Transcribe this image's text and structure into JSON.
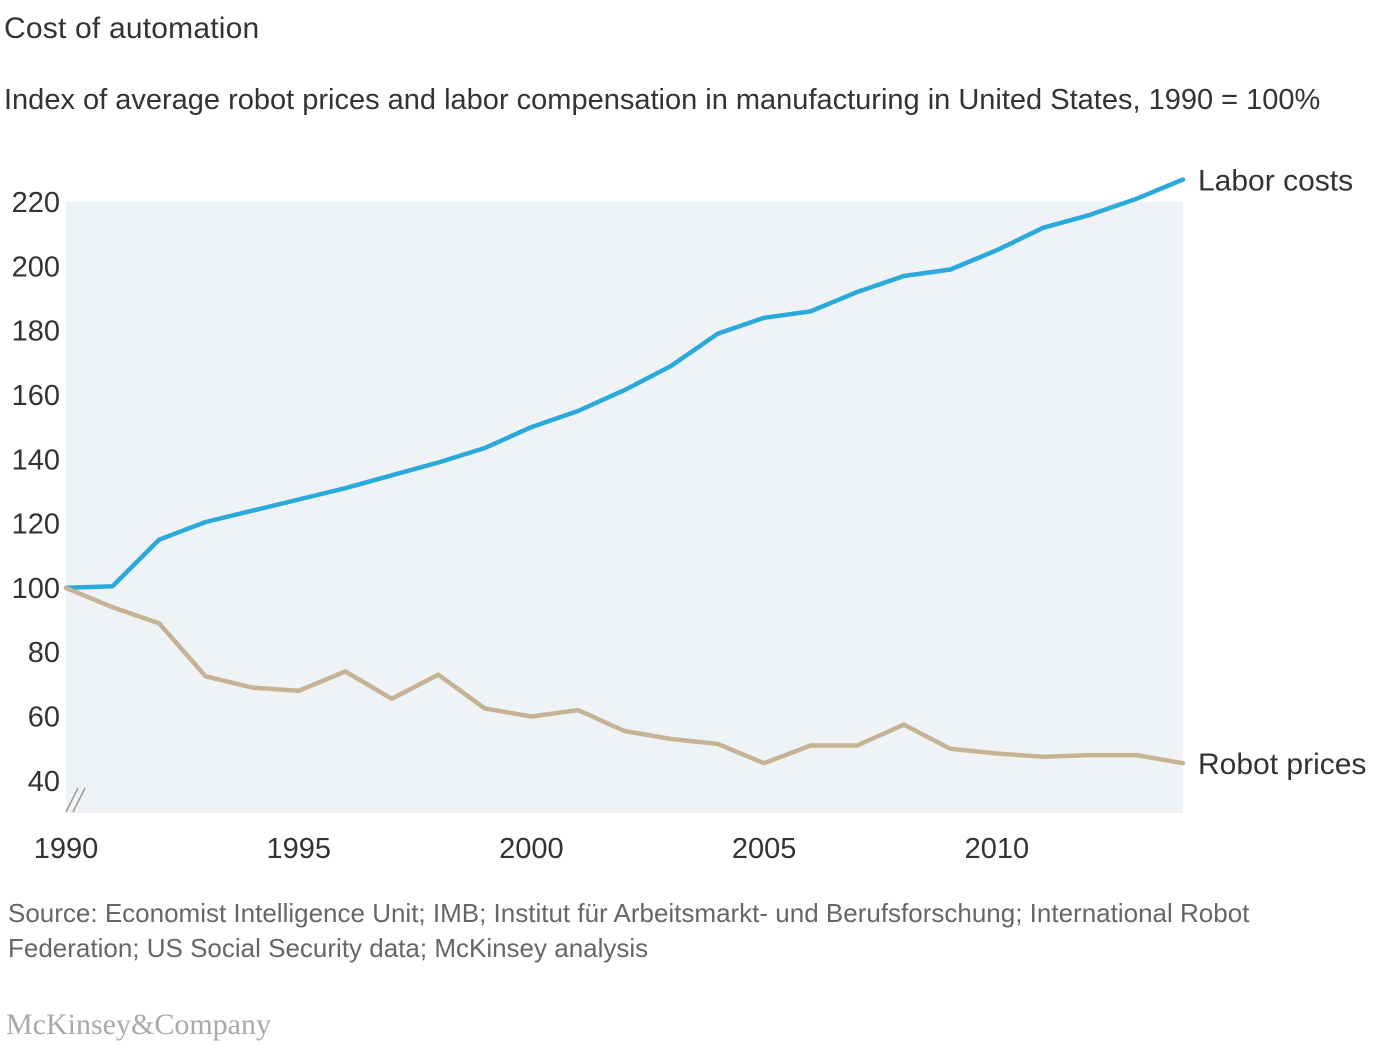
{
  "colors": {
    "labor": "#2aa9dc",
    "robot": "#c6b396",
    "plot_bg": "#f0f3f5",
    "text": "#333333",
    "muted": "#666666"
  },
  "chart_data": {
    "type": "line",
    "title": "Cost of automation",
    "subtitle": "Index of average robot prices and labor compensation in manufacturing in United States, 1990 = 100%",
    "xlabel": "",
    "ylabel": "",
    "xlim": [
      1990,
      2014
    ],
    "ylim": [
      30,
      220
    ],
    "y_ticks": [
      40,
      60,
      80,
      100,
      120,
      140,
      160,
      180,
      200,
      220
    ],
    "x_ticks": [
      1990,
      1995,
      2000,
      2005,
      2010
    ],
    "axis_break": true,
    "grid": false,
    "legend": "inline labels at right end of lines",
    "x": [
      1990,
      1991,
      1992,
      1993,
      1994,
      1995,
      1996,
      1997,
      1998,
      1999,
      2000,
      2001,
      2002,
      2003,
      2004,
      2005,
      2006,
      2007,
      2008,
      2009,
      2010,
      2011,
      2012,
      2013,
      2014
    ],
    "series": [
      {
        "name": "Labor costs",
        "color": "#2aa9dc",
        "values": [
          100,
          100.5,
          115,
          120.5,
          124,
          127.5,
          131,
          135,
          139,
          143.5,
          150,
          155,
          161.5,
          169,
          179,
          184,
          186,
          192,
          197,
          199,
          205,
          212,
          216,
          221,
          227
        ]
      },
      {
        "name": "Robot prices",
        "color": "#c6b396",
        "values": [
          100,
          94,
          89,
          72.5,
          69,
          68,
          74,
          65.5,
          73,
          62.5,
          60,
          62,
          55.5,
          53,
          51.5,
          45.5,
          51,
          51,
          57.5,
          50,
          48.5,
          47.5,
          48,
          48,
          45.5
        ]
      }
    ]
  },
  "source_text": "Source: Economist Intelligence Unit; IMB; Institut für Arbeitsmarkt- und Berufsforschung; International Robot Federation; US Social Security data; McKinsey analysis",
  "brand": "McKinsey&Company"
}
